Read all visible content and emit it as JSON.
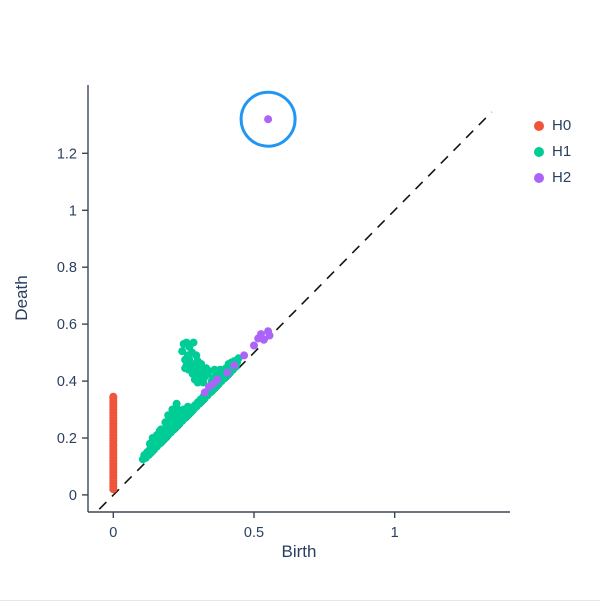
{
  "page": {
    "background": "#ffffff"
  },
  "chart_data": {
    "type": "scatter",
    "title": "",
    "xlabel": "Birth",
    "ylabel": "Death",
    "xlim": [
      -0.09,
      1.41
    ],
    "ylim": [
      -0.06,
      1.44
    ],
    "xticks": [
      0,
      0.5,
      1
    ],
    "yticks": [
      0,
      0.2,
      0.4,
      0.6,
      0.8,
      1,
      1.2
    ],
    "grid": false,
    "legend_position": "right",
    "axis_color": "#3b4656",
    "text_color": "#2a3f5f",
    "marker_radius_px": 4,
    "diagonal_line": {
      "style": "dashed",
      "color": "#141414",
      "x1": -0.05,
      "y1": -0.05,
      "x2": 1.345,
      "y2": 1.345
    },
    "annotation_circle": {
      "x": 0.55,
      "y": 1.32,
      "radius_px": 27,
      "color": "#2196f3",
      "stroke_px": 3
    },
    "series": [
      {
        "name": "H0",
        "color": "#EF553B",
        "points": [
          [
            0,
            0.02
          ],
          [
            0,
            0.03
          ],
          [
            0,
            0.04
          ],
          [
            0,
            0.05
          ],
          [
            0,
            0.06
          ],
          [
            0,
            0.07
          ],
          [
            0,
            0.08
          ],
          [
            0,
            0.09
          ],
          [
            0,
            0.1
          ],
          [
            0,
            0.11
          ],
          [
            0,
            0.12
          ],
          [
            0,
            0.13
          ],
          [
            0,
            0.14
          ],
          [
            0,
            0.15
          ],
          [
            0,
            0.16
          ],
          [
            0,
            0.17
          ],
          [
            0,
            0.18
          ],
          [
            0,
            0.19
          ],
          [
            0,
            0.2
          ],
          [
            0,
            0.21
          ],
          [
            0,
            0.22
          ],
          [
            0,
            0.23
          ],
          [
            0,
            0.24
          ],
          [
            0,
            0.25
          ],
          [
            0,
            0.26
          ],
          [
            0,
            0.27
          ],
          [
            0,
            0.28
          ],
          [
            0,
            0.29
          ],
          [
            0,
            0.3
          ],
          [
            0,
            0.31
          ],
          [
            0,
            0.32
          ],
          [
            0,
            0.33
          ],
          [
            0,
            0.34
          ],
          [
            0,
            0.345
          ]
        ]
      },
      {
        "name": "H1",
        "color": "#00CC96",
        "points": [
          [
            0.105,
            0.125
          ],
          [
            0.11,
            0.14
          ],
          [
            0.115,
            0.13
          ],
          [
            0.12,
            0.15
          ],
          [
            0.125,
            0.14
          ],
          [
            0.13,
            0.16
          ],
          [
            0.135,
            0.15
          ],
          [
            0.14,
            0.165
          ],
          [
            0.145,
            0.16
          ],
          [
            0.15,
            0.175
          ],
          [
            0.155,
            0.17
          ],
          [
            0.16,
            0.185
          ],
          [
            0.165,
            0.18
          ],
          [
            0.17,
            0.195
          ],
          [
            0.175,
            0.19
          ],
          [
            0.18,
            0.205
          ],
          [
            0.185,
            0.2
          ],
          [
            0.19,
            0.215
          ],
          [
            0.195,
            0.21
          ],
          [
            0.2,
            0.225
          ],
          [
            0.205,
            0.22
          ],
          [
            0.21,
            0.235
          ],
          [
            0.215,
            0.23
          ],
          [
            0.22,
            0.245
          ],
          [
            0.225,
            0.24
          ],
          [
            0.23,
            0.255
          ],
          [
            0.235,
            0.25
          ],
          [
            0.24,
            0.265
          ],
          [
            0.245,
            0.26
          ],
          [
            0.25,
            0.275
          ],
          [
            0.255,
            0.27
          ],
          [
            0.26,
            0.285
          ],
          [
            0.265,
            0.28
          ],
          [
            0.27,
            0.295
          ],
          [
            0.275,
            0.29
          ],
          [
            0.28,
            0.305
          ],
          [
            0.285,
            0.3
          ],
          [
            0.29,
            0.315
          ],
          [
            0.295,
            0.31
          ],
          [
            0.3,
            0.325
          ],
          [
            0.305,
            0.32
          ],
          [
            0.31,
            0.335
          ],
          [
            0.315,
            0.33
          ],
          [
            0.32,
            0.345
          ],
          [
            0.325,
            0.34
          ],
          [
            0.33,
            0.355
          ],
          [
            0.335,
            0.35
          ],
          [
            0.34,
            0.365
          ],
          [
            0.345,
            0.36
          ],
          [
            0.35,
            0.375
          ],
          [
            0.355,
            0.37
          ],
          [
            0.36,
            0.385
          ],
          [
            0.365,
            0.38
          ],
          [
            0.37,
            0.395
          ],
          [
            0.375,
            0.39
          ],
          [
            0.38,
            0.405
          ],
          [
            0.385,
            0.4
          ],
          [
            0.39,
            0.415
          ],
          [
            0.395,
            0.41
          ],
          [
            0.4,
            0.425
          ],
          [
            0.405,
            0.42
          ],
          [
            0.41,
            0.435
          ],
          [
            0.415,
            0.43
          ],
          [
            0.42,
            0.445
          ],
          [
            0.425,
            0.44
          ],
          [
            0.43,
            0.455
          ],
          [
            0.435,
            0.45
          ],
          [
            0.44,
            0.465
          ],
          [
            0.13,
            0.18
          ],
          [
            0.145,
            0.19
          ],
          [
            0.16,
            0.21
          ],
          [
            0.175,
            0.225
          ],
          [
            0.19,
            0.245
          ],
          [
            0.205,
            0.255
          ],
          [
            0.22,
            0.27
          ],
          [
            0.235,
            0.285
          ],
          [
            0.25,
            0.3
          ],
          [
            0.265,
            0.31
          ],
          [
            0.155,
            0.21
          ],
          [
            0.17,
            0.23
          ],
          [
            0.185,
            0.255
          ],
          [
            0.2,
            0.27
          ],
          [
            0.215,
            0.285
          ],
          [
            0.23,
            0.3
          ],
          [
            0.14,
            0.2
          ],
          [
            0.165,
            0.225
          ],
          [
            0.21,
            0.3
          ],
          [
            0.225,
            0.32
          ],
          [
            0.195,
            0.28
          ],
          [
            0.245,
            0.505
          ],
          [
            0.25,
            0.53
          ],
          [
            0.255,
            0.475
          ],
          [
            0.26,
            0.535
          ],
          [
            0.265,
            0.49
          ],
          [
            0.27,
            0.52
          ],
          [
            0.268,
            0.44
          ],
          [
            0.275,
            0.46
          ],
          [
            0.28,
            0.5
          ],
          [
            0.282,
            0.425
          ],
          [
            0.285,
            0.535
          ],
          [
            0.29,
            0.46
          ],
          [
            0.29,
            0.405
          ],
          [
            0.295,
            0.435
          ],
          [
            0.3,
            0.47
          ],
          [
            0.302,
            0.415
          ],
          [
            0.305,
            0.445
          ],
          [
            0.31,
            0.425
          ],
          [
            0.312,
            0.46
          ],
          [
            0.315,
            0.405
          ],
          [
            0.32,
            0.435
          ],
          [
            0.325,
            0.415
          ],
          [
            0.33,
            0.445
          ],
          [
            0.335,
            0.425
          ],
          [
            0.34,
            0.435
          ],
          [
            0.3,
            0.395
          ],
          [
            0.32,
            0.395
          ],
          [
            0.26,
            0.455
          ],
          [
            0.255,
            0.445
          ],
          [
            0.285,
            0.445
          ],
          [
            0.27,
            0.475
          ],
          [
            0.295,
            0.49
          ],
          [
            0.355,
            0.41
          ],
          [
            0.365,
            0.42
          ],
          [
            0.375,
            0.43
          ],
          [
            0.39,
            0.435
          ],
          [
            0.4,
            0.445
          ],
          [
            0.41,
            0.46
          ],
          [
            0.42,
            0.465
          ],
          [
            0.43,
            0.47
          ],
          [
            0.445,
            0.48
          ],
          [
            0.35,
            0.4
          ],
          [
            0.36,
            0.44
          ],
          [
            0.38,
            0.44
          ]
        ]
      },
      {
        "name": "H2",
        "color": "#AB63FA",
        "points": [
          [
            0.325,
            0.36
          ],
          [
            0.34,
            0.38
          ],
          [
            0.355,
            0.39
          ],
          [
            0.37,
            0.405
          ],
          [
            0.405,
            0.43
          ],
          [
            0.43,
            0.455
          ],
          [
            0.465,
            0.49
          ],
          [
            0.5,
            0.525
          ],
          [
            0.515,
            0.55
          ],
          [
            0.525,
            0.565
          ],
          [
            0.535,
            0.545
          ],
          [
            0.55,
            0.575
          ],
          [
            0.555,
            0.56
          ],
          [
            0.55,
            1.32
          ]
        ]
      }
    ]
  }
}
